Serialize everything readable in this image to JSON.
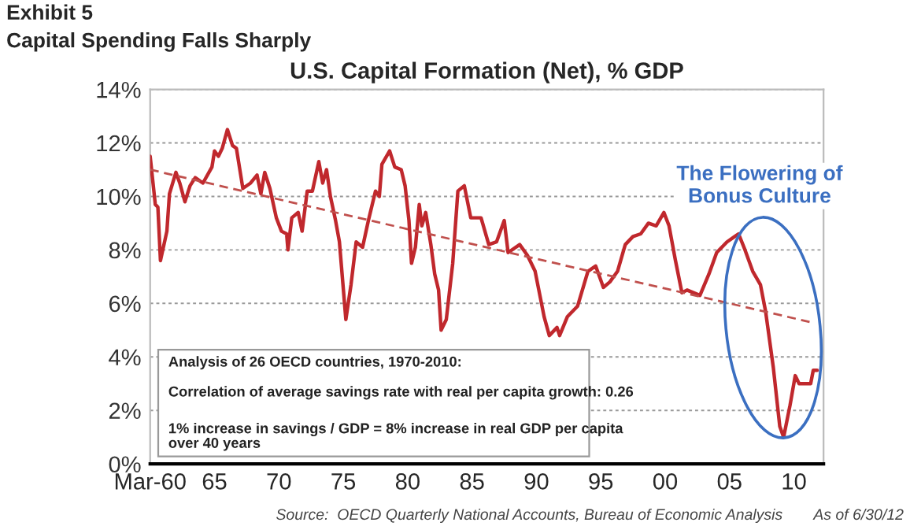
{
  "chart_data": {
    "type": "line",
    "title": "Capital Spending Falls Sharply",
    "subtitle": "U.S. Capital Formation (Net), % GDP",
    "annotations": [
      "Exhibit 5",
      "The Flowering of\nBonus Culture",
      "Analysis of 26 OECD countries, 1970-2010:",
      "Correlation of average savings rate with real per capita growth: 0.26",
      "1% increase in savings / GDP = 8% increase in real GDP per capita\nover 40 years",
      "Source:  OECD Quarterly National Accounts, Bureau of Economic Analysis",
      "As of 6/30/12"
    ],
    "xlim": [
      1960,
      2012.3
    ],
    "xticks": [
      {
        "value": 1960,
        "label": "Mar-60"
      },
      {
        "value": 1965,
        "label": "65"
      },
      {
        "value": 1970,
        "label": "70"
      },
      {
        "value": 1975,
        "label": "75"
      },
      {
        "value": 1980,
        "label": "80"
      },
      {
        "value": 1985,
        "label": "85"
      },
      {
        "value": 1990,
        "label": "90"
      },
      {
        "value": 1995,
        "label": "95"
      },
      {
        "value": 2000,
        "label": "00"
      },
      {
        "value": 2005,
        "label": "05"
      },
      {
        "value": 2010,
        "label": "10"
      }
    ],
    "ylim": [
      0,
      14
    ],
    "yticks": [
      {
        "value": 0,
        "label": "0%"
      },
      {
        "value": 2,
        "label": "2%"
      },
      {
        "value": 4,
        "label": "4%"
      },
      {
        "value": 6,
        "label": "6%"
      },
      {
        "value": 8,
        "label": "8%"
      },
      {
        "value": 10,
        "label": "10%"
      },
      {
        "value": 12,
        "label": "12%"
      },
      {
        "value": 14,
        "label": "14%"
      }
    ],
    "grid": "y",
    "legend": false,
    "series": [
      {
        "color": "#c0282d",
        "line_style": "solid",
        "x": [
          1960,
          1960.4,
          1960.6,
          1960.8,
          1961.3,
          1961.5,
          1962,
          1962.3,
          1962.7,
          1963.1,
          1963.5,
          1964.1,
          1964.8,
          1965,
          1965.3,
          1965.6,
          1966,
          1966.4,
          1966.7,
          1967.2,
          1967.8,
          1968.3,
          1968.6,
          1968.9,
          1969.3,
          1969.8,
          1970.2,
          1970.6,
          1970.7,
          1971,
          1971.5,
          1971.8,
          1972.2,
          1972.6,
          1973.1,
          1973.4,
          1973.7,
          1974,
          1974.4,
          1974.7,
          1975.2,
          1975.6,
          1976,
          1976.5,
          1976.95,
          1977.5,
          1977.8,
          1978,
          1978.6,
          1979,
          1979.5,
          1979.8,
          1980.1,
          1980.3,
          1980.6,
          1980.9,
          1981.1,
          1981.4,
          1981.8,
          1982.1,
          1982.4,
          1982.6,
          1983,
          1983.5,
          1983.9,
          1984.4,
          1984.9,
          1985.7,
          1986.3,
          1986.9,
          1987.5,
          1987.8,
          1988.7,
          1989.3,
          1989.9,
          1990.6,
          1991,
          1991.6,
          1991.8,
          1992.4,
          1993.2,
          1994,
          1994.6,
          1995.2,
          1995.7,
          1996.3,
          1996.9,
          1997.5,
          1998.1,
          1998.7,
          1999.3,
          1999.9,
          2000.3,
          2000.8,
          2001.3,
          2001.7,
          2002.7,
          2003.4,
          2004,
          2004.8,
          2005.4,
          2005.7,
          2006.2,
          2006.8,
          2007.4,
          2007.8,
          2008.4,
          2008.9,
          2009.2,
          2009.7,
          2010.1,
          2010.4,
          2011.3,
          2011.5,
          2011.8
        ],
        "values": [
          11.5,
          9.7,
          9.6,
          7.6,
          8.7,
          10.1,
          10.9,
          10.5,
          9.8,
          10.4,
          10.7,
          10.5,
          11.1,
          11.7,
          11.5,
          11.8,
          12.5,
          11.9,
          11.8,
          10.3,
          10.5,
          10.8,
          10.1,
          10.9,
          10.3,
          9.2,
          8.7,
          8.6,
          8.0,
          9.2,
          9.4,
          8.7,
          10.2,
          10.2,
          11.3,
          10.5,
          11.0,
          10.0,
          9.1,
          8.3,
          5.4,
          6.7,
          8.3,
          8.1,
          9.1,
          10.2,
          10.0,
          11.2,
          11.7,
          11.1,
          11.0,
          10.4,
          9.1,
          7.5,
          8.1,
          9.7,
          8.9,
          9.4,
          8.2,
          7.1,
          6.5,
          5.0,
          5.4,
          7.5,
          10.2,
          10.4,
          9.2,
          9.2,
          8.2,
          8.3,
          9.1,
          7.9,
          8.2,
          7.8,
          7.2,
          5.5,
          4.8,
          5.1,
          4.8,
          5.5,
          5.9,
          7.2,
          7.4,
          6.6,
          6.8,
          7.2,
          8.2,
          8.5,
          8.6,
          9.0,
          8.9,
          9.4,
          8.9,
          7.6,
          6.4,
          6.5,
          6.3,
          7.1,
          7.9,
          8.3,
          8.5,
          8.6,
          8.0,
          7.2,
          6.7,
          5.7,
          3.6,
          1.4,
          1.0,
          2.2,
          3.3,
          3.0,
          3.0,
          3.5,
          3.5
        ]
      },
      {
        "color": "#c0504d",
        "line_style": "dashed",
        "x": [
          1960,
          2011.3
        ],
        "values": [
          11.0,
          5.3
        ]
      }
    ]
  }
}
